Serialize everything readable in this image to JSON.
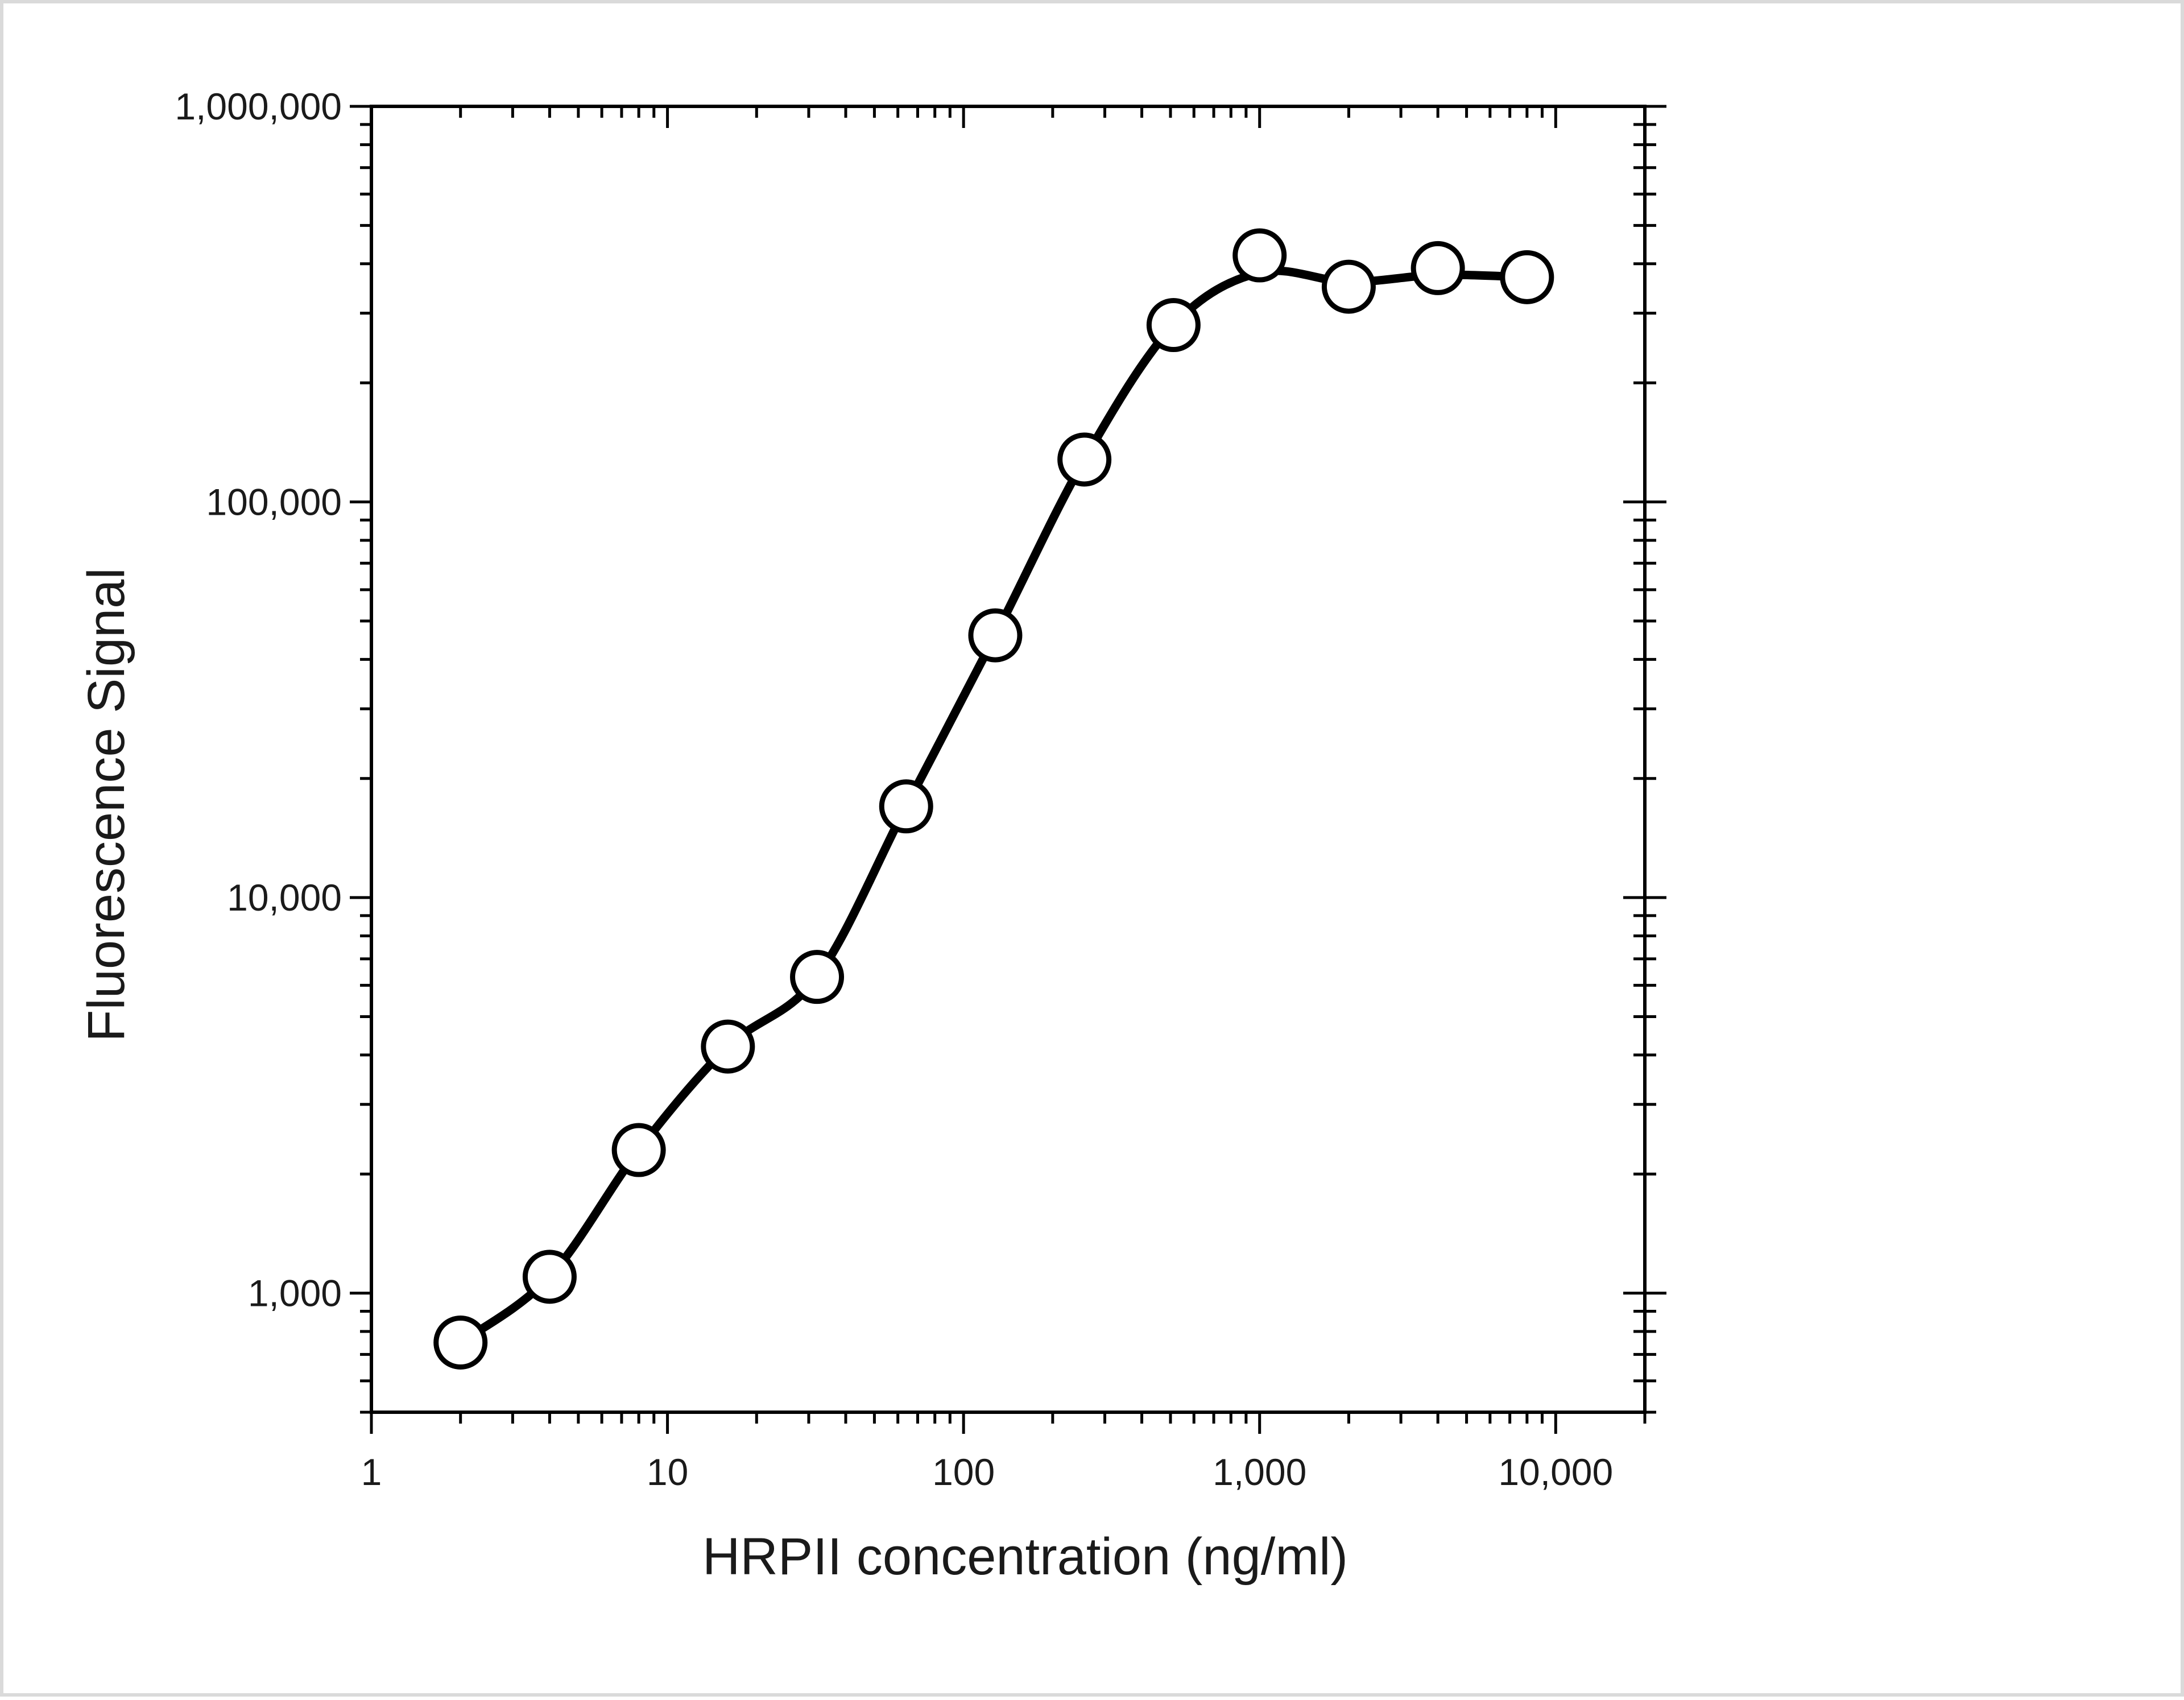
{
  "chart_data": {
    "type": "scatter",
    "xlabel": "HRPII concentration (ng/ml)",
    "ylabel": "Fluorescence Signal",
    "x_scale": "log",
    "y_scale": "log",
    "xlim": [
      1,
      20000
    ],
    "ylim": [
      500,
      1000000
    ],
    "x_ticks": [
      {
        "value": 1,
        "label": "1"
      },
      {
        "value": 10,
        "label": "10"
      },
      {
        "value": 100,
        "label": "100"
      },
      {
        "value": 1000,
        "label": "1,000"
      },
      {
        "value": 10000,
        "label": "10,000"
      }
    ],
    "y_ticks": [
      {
        "value": 1000,
        "label": "1,000"
      },
      {
        "value": 10000,
        "label": "10,000"
      },
      {
        "value": 100000,
        "label": "100,000"
      },
      {
        "value": 1000000,
        "label": "1,000,000"
      }
    ],
    "grid": false,
    "marker": "open-circle",
    "line_color": "#000000",
    "series": [
      {
        "x": [
          2,
          4,
          8,
          16,
          32,
          64,
          128,
          256,
          512,
          1000,
          2000,
          4000,
          8000
        ],
        "y": [
          750,
          1100,
          2300,
          4200,
          6300,
          17000,
          46000,
          128000,
          280000,
          420000,
          350000,
          390000,
          370000
        ],
        "curve_y": [
          750,
          1100,
          2300,
          4200,
          6300,
          17000,
          46000,
          128000,
          280000,
          380000,
          360000,
          375000,
          370000
        ]
      }
    ]
  }
}
